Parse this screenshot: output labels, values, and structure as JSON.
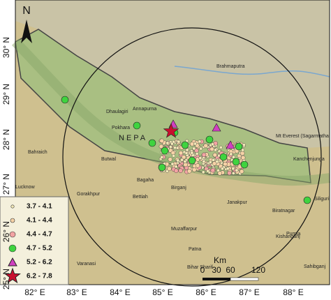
{
  "north": "N",
  "latitudes": [
    "30° N",
    "29° N",
    "28° N",
    "27° N",
    "26° N",
    "25° N"
  ],
  "longitudes": [
    "82° E",
    "83° E",
    "84° E",
    "85° E",
    "86° E",
    "87° E",
    "88° E"
  ],
  "places": [
    "Dhaulagiri",
    "Annapurna",
    "Pokhara",
    "NEPA",
    "Butwal",
    "Bahraich",
    "Bagaha",
    "Gorakhpur",
    "Bettiah",
    "Faizabad",
    "Birganj",
    "Muzaffarpur",
    "Patna",
    "Varanasi",
    "Janakpur",
    "Biratnagar",
    "Kishanganj",
    "Purnia",
    "Siliguri",
    "Brahmaputra",
    "Mt Everest (Sagarmatha, Qomolangma) 8850 m",
    "Kanchenjunga",
    "Bihar Sharif",
    "Lucknow",
    "Sahibganj"
  ],
  "legend": [
    "3.7 - 4.1",
    "4.1 - 4.4",
    "4.4 - 4.7",
    "4.7 - 5.2",
    "5.2 - 6.2",
    "6.2 - 7.8"
  ],
  "scale": {
    "unit": "Km",
    "ticks": [
      "0",
      "30",
      "60",
      "120"
    ]
  }
}
